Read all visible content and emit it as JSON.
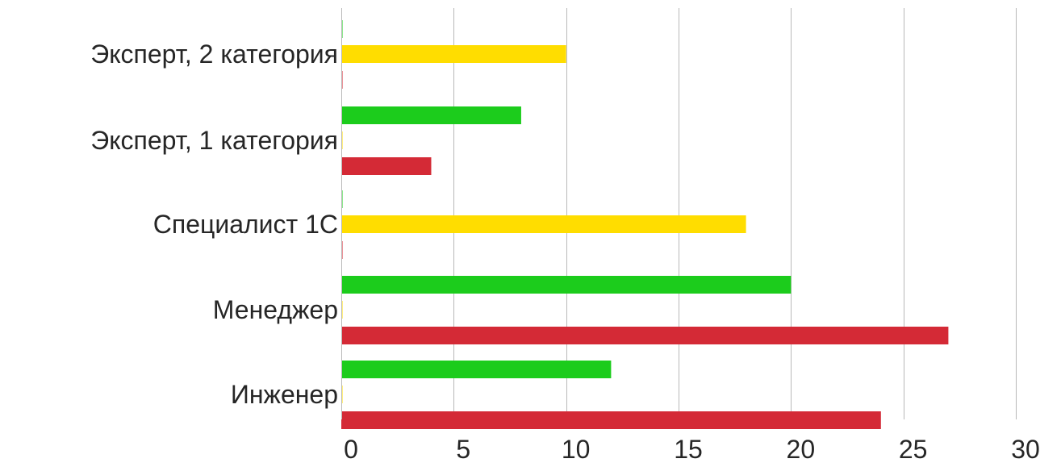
{
  "chart_data": {
    "type": "bar",
    "orientation": "horizontal",
    "categories": [
      "Эксперт, 2 категория",
      "Эксперт, 1 категория",
      "Специалист 1С",
      "Менеджер",
      "Инженер"
    ],
    "series": [
      {
        "color": "#1ccc1c",
        "values": [
          0,
          8,
          0,
          20,
          12
        ]
      },
      {
        "color": "#ffdd00",
        "values": [
          10,
          0,
          18,
          0,
          0
        ]
      },
      {
        "color": "#d42a36",
        "values": [
          0,
          4,
          0,
          27,
          24
        ]
      }
    ],
    "xlim": [
      0,
      30
    ],
    "xticks": [
      "0",
      "5",
      "10",
      "15",
      "20",
      "25",
      "30"
    ],
    "grid": true,
    "legend": "none"
  }
}
